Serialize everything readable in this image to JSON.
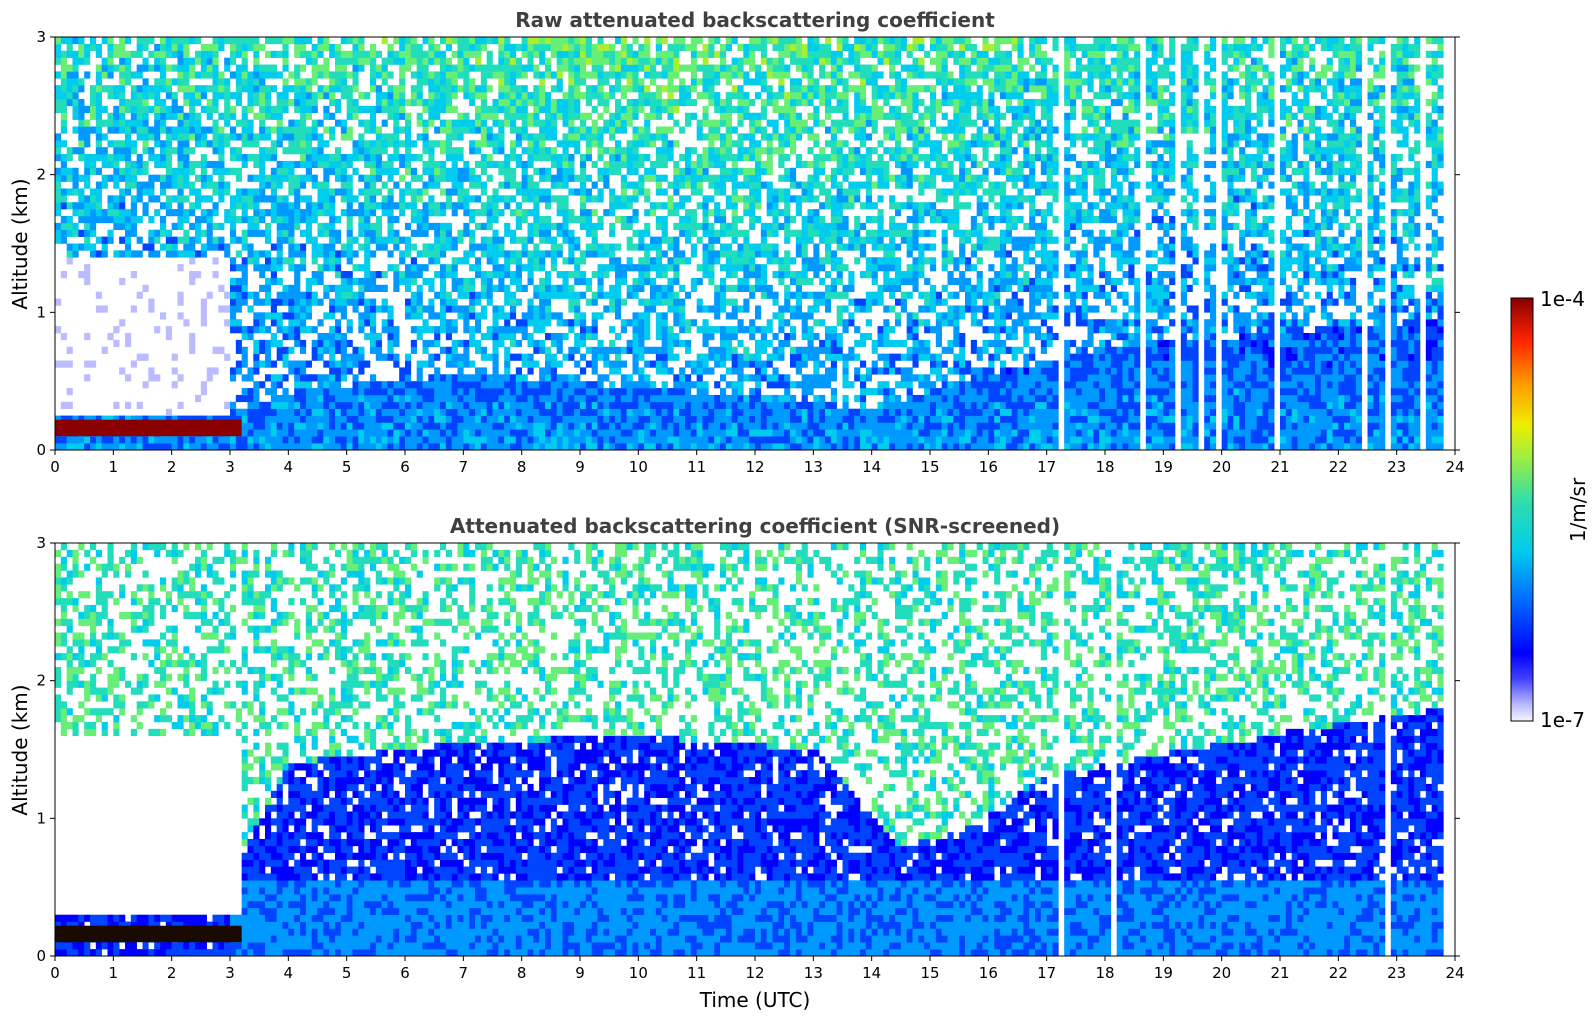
{
  "chart_data": [
    {
      "type": "heatmap",
      "title": "Raw attenuated backscattering coefficient",
      "xlabel": "",
      "ylabel": "Altitude (km)",
      "xlim": [
        0,
        24
      ],
      "ylim": [
        0,
        3
      ],
      "x_ticks": [
        "0",
        "1",
        "2",
        "3",
        "4",
        "5",
        "6",
        "7",
        "8",
        "9",
        "10",
        "11",
        "12",
        "13",
        "14",
        "15",
        "16",
        "17",
        "18",
        "19",
        "20",
        "21",
        "22",
        "23",
        "24"
      ],
      "y_ticks": [
        "0",
        "1",
        "2",
        "3"
      ],
      "screened": false,
      "features": {
        "boundary_layer_top_km": [
          [
            0,
            0.25
          ],
          [
            3,
            0.3
          ],
          [
            4.5,
            0.45
          ],
          [
            7,
            0.55
          ],
          [
            10,
            0.45
          ],
          [
            14,
            0.3
          ],
          [
            16,
            0.55
          ],
          [
            18,
            0.75
          ],
          [
            21,
            0.85
          ],
          [
            23.8,
            0.95
          ]
        ],
        "low_cloud": {
          "x_start": 0,
          "x_end": 3.2,
          "altitude_km": [
            0.1,
            0.22
          ]
        },
        "sparse_columns_from_hour": 17
      }
    },
    {
      "type": "heatmap",
      "title": "Attenuated backscattering coefficient (SNR-screened)",
      "xlabel": "Time (UTC)",
      "ylabel": "Altitude (km)",
      "xlim": [
        0,
        24
      ],
      "ylim": [
        0,
        3
      ],
      "x_ticks": [
        "0",
        "1",
        "2",
        "3",
        "4",
        "5",
        "6",
        "7",
        "8",
        "9",
        "10",
        "11",
        "12",
        "13",
        "14",
        "15",
        "16",
        "17",
        "18",
        "19",
        "20",
        "21",
        "22",
        "23",
        "24"
      ],
      "y_ticks": [
        "0",
        "1",
        "2",
        "3"
      ],
      "screened": true,
      "features": {
        "screened_region_top_km": [
          [
            0,
            0.3
          ],
          [
            3,
            0.55
          ],
          [
            4,
            1.4
          ],
          [
            7,
            1.55
          ],
          [
            10,
            1.6
          ],
          [
            13,
            1.5
          ],
          [
            14.5,
            0.8
          ],
          [
            15.5,
            0.9
          ],
          [
            17,
            1.3
          ],
          [
            20,
            1.55
          ],
          [
            23.8,
            1.8
          ]
        ],
        "low_cloud": {
          "x_start": 0,
          "x_end": 3.2,
          "altitude_km": [
            0.1,
            0.22
          ]
        },
        "sparse_columns_from_hour": 17
      }
    }
  ],
  "colorbar": {
    "label": "1/m/sr",
    "max_label": "1e-4",
    "min_label": "1e-7",
    "colors": [
      "#eeeeff",
      "#bbbbff",
      "#8888ff",
      "#0000ff",
      "#0044ff",
      "#0099ff",
      "#00ccee",
      "#22ddbb",
      "#66ee77",
      "#aaee33",
      "#eeee00",
      "#ffaa00",
      "#ff5500",
      "#dd0000",
      "#880000"
    ]
  }
}
